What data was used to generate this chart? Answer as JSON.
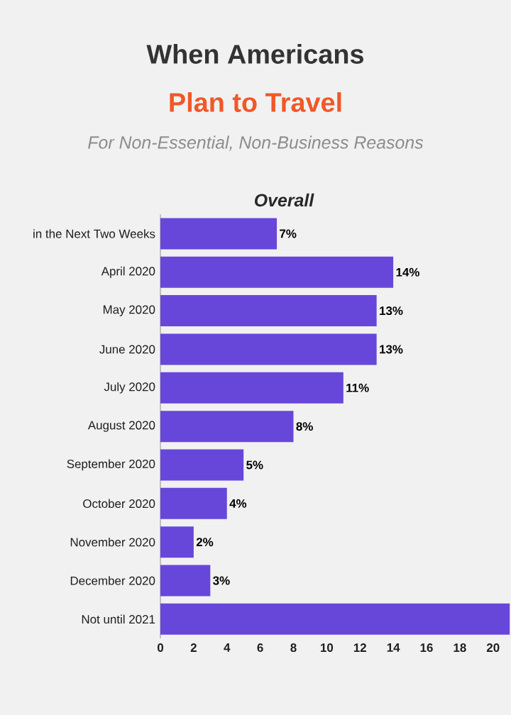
{
  "chart_data": {
    "type": "bar",
    "orientation": "horizontal",
    "title": "When Americans",
    "subtitle": "Plan to Travel",
    "annotations": [
      "For Non-Essential, Non-Business Reasons",
      "Overall"
    ],
    "categories": [
      "in the Next Two Weeks",
      "April 2020",
      "May 2020",
      "June 2020",
      "July 2020",
      "August 2020",
      "September 2020",
      "October 2020",
      "November 2020",
      "December 2020",
      "Not until 2021"
    ],
    "values": [
      7,
      14,
      13,
      13,
      11,
      8,
      5,
      4,
      2,
      3,
      21
    ],
    "value_labels": [
      "7%",
      "14%",
      "13%",
      "13%",
      "11%",
      "8%",
      "5%",
      "4%",
      "2%",
      "3%",
      null
    ],
    "color": "#6747d9",
    "xlim": [
      0,
      21
    ],
    "xticks": [
      0,
      2,
      4,
      6,
      8,
      10,
      12,
      14,
      16,
      18,
      20
    ],
    "grid": false
  }
}
